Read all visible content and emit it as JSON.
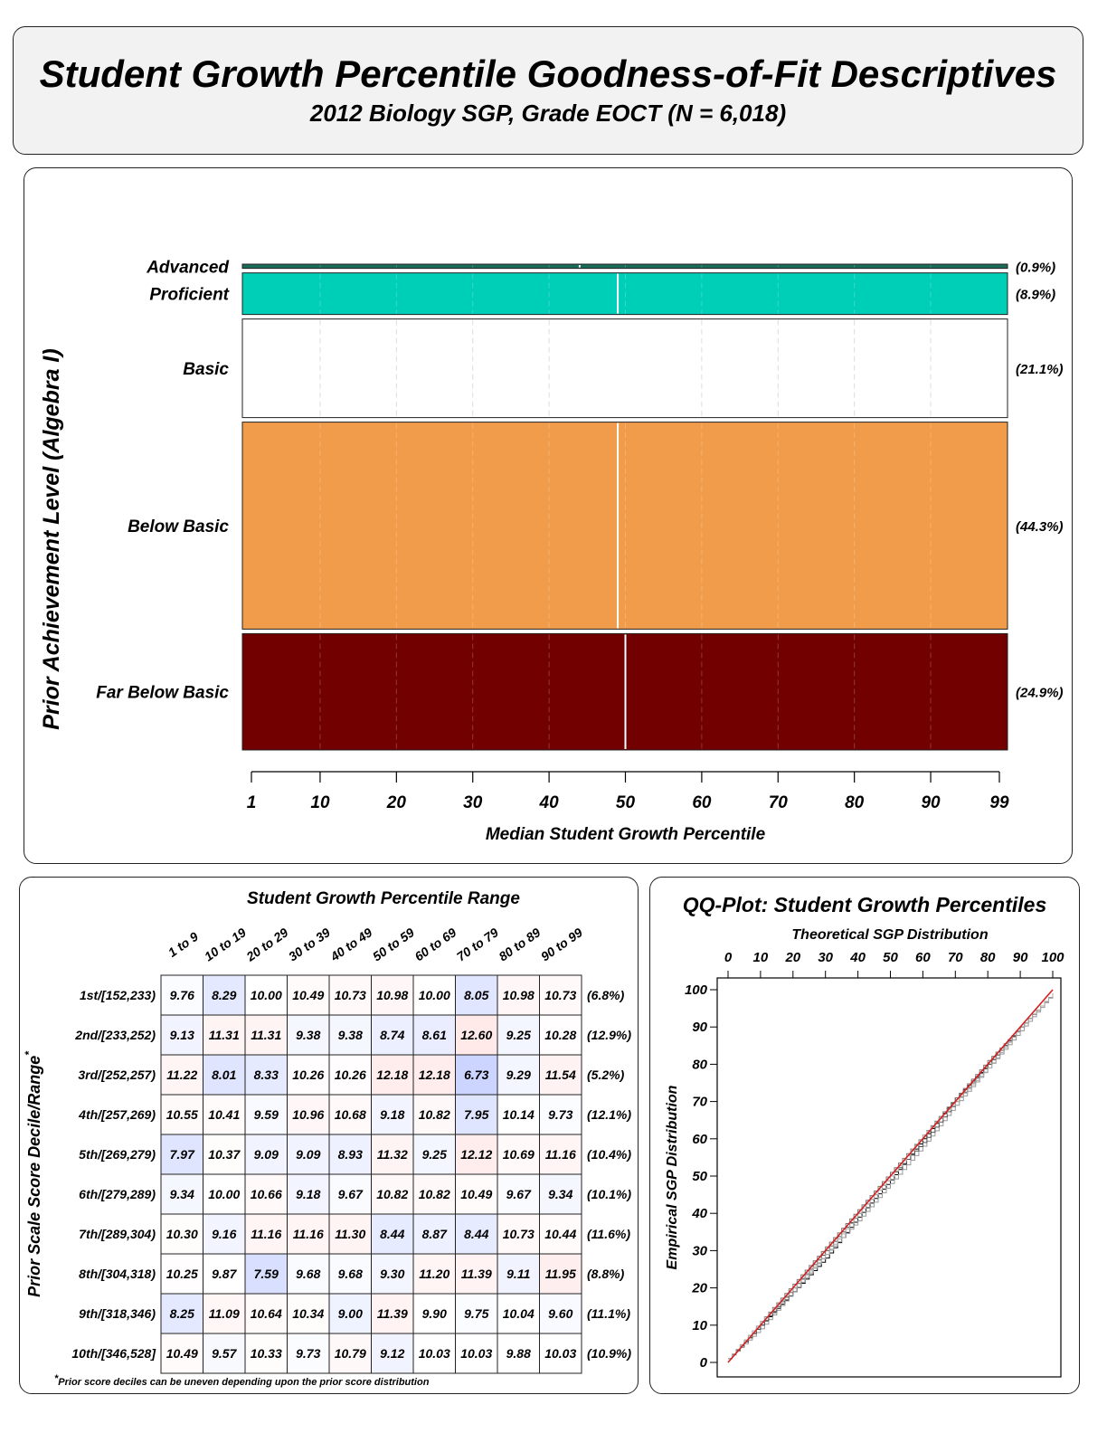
{
  "header": {
    "title": "Student Growth Percentile Goodness-of-Fit Descriptives",
    "subtitle": "2012 Biology SGP, Grade EOCT (N = 6,018)"
  },
  "chart_data": [
    {
      "type": "bar",
      "orientation": "horizontal",
      "ylabel": "Prior Achievement Level (Algebra I)",
      "xlabel": "Median Student Growth Percentile",
      "xlim": [
        1,
        99
      ],
      "xticks": [
        "1",
        "10",
        "20",
        "30",
        "40",
        "50",
        "60",
        "70",
        "80",
        "90",
        "99"
      ],
      "categories": [
        "Advanced",
        "Proficient",
        "Basic",
        "Below Basic",
        "Far Below Basic"
      ],
      "percent_labels": [
        "(0.9%)",
        "(8.9%)",
        "(21.1%)",
        "(44.3%)",
        "(24.9%)"
      ],
      "percent_values": [
        0.9,
        8.9,
        21.1,
        44.3,
        24.9
      ],
      "median_sgp": [
        44,
        49,
        50,
        49,
        50
      ],
      "colors": [
        "#1a6b57",
        "#00cfb7",
        "#ffffff",
        "#f19c4a",
        "#720000"
      ],
      "median_line_colors": [
        "#ffffff",
        "#ffffff",
        "#ffffff",
        "#ffffff",
        "#ffffff"
      ]
    },
    {
      "type": "table",
      "title": "Student Growth Percentile Range",
      "ylabel": "Prior Scale Score Decile/Range",
      "ylabel_mark": "*",
      "columns": [
        "1 to 9",
        "10 to 19",
        "20 to 29",
        "30 to 39",
        "40 to 49",
        "50 to 59",
        "60 to 69",
        "70 to 79",
        "80 to 89",
        "90 to 99"
      ],
      "rows": [
        "1st/[152,233)",
        "2nd/[233,252)",
        "3rd/[252,257)",
        "4th/[257,269)",
        "5th/[269,279)",
        "6th/[279,289)",
        "7th/[289,304)",
        "8th/[304,318)",
        "9th/[318,346)",
        "10th/[346,528]"
      ],
      "values": [
        [
          "9.76",
          "8.29",
          "10.00",
          "10.49",
          "10.73",
          "10.98",
          "10.00",
          "8.05",
          "10.98",
          "10.73"
        ],
        [
          "9.13",
          "11.31",
          "11.31",
          "9.38",
          "9.38",
          "8.74",
          "8.61",
          "12.60",
          "9.25",
          "10.28"
        ],
        [
          "11.22",
          "8.01",
          "8.33",
          "10.26",
          "10.26",
          "12.18",
          "12.18",
          "6.73",
          "9.29",
          "11.54"
        ],
        [
          "10.55",
          "10.41",
          "9.59",
          "10.96",
          "10.68",
          "9.18",
          "10.82",
          "7.95",
          "10.14",
          "9.73"
        ],
        [
          "7.97",
          "10.37",
          "9.09",
          "9.09",
          "8.93",
          "11.32",
          "9.25",
          "12.12",
          "10.69",
          "11.16"
        ],
        [
          "9.34",
          "10.00",
          "10.66",
          "9.18",
          "9.67",
          "10.82",
          "10.82",
          "10.49",
          "9.67",
          "9.34"
        ],
        [
          "10.30",
          "9.16",
          "11.16",
          "11.16",
          "11.30",
          "8.44",
          "8.87",
          "8.44",
          "10.73",
          "10.44"
        ],
        [
          "10.25",
          "9.87",
          "7.59",
          "9.68",
          "9.68",
          "9.30",
          "11.20",
          "11.39",
          "9.11",
          "11.95"
        ],
        [
          "8.25",
          "11.09",
          "10.64",
          "10.34",
          "9.00",
          "11.39",
          "9.90",
          "9.75",
          "10.04",
          "9.60"
        ],
        [
          "10.49",
          "9.57",
          "10.33",
          "9.73",
          "10.79",
          "9.12",
          "10.03",
          "10.03",
          "9.88",
          "10.03"
        ]
      ],
      "row_percents": [
        "(6.8%)",
        "(12.9%)",
        "(5.2%)",
        "(12.1%)",
        "(10.4%)",
        "(10.1%)",
        "(11.6%)",
        "(8.8%)",
        "(11.1%)",
        "(10.9%)"
      ],
      "footnote_mark": "*",
      "footnote": "Prior score deciles can be uneven depending upon the prior score distribution"
    },
    {
      "type": "line",
      "title": "QQ-Plot: Student Growth Percentiles",
      "xlabel": "Theoretical SGP Distribution",
      "ylabel": "Empirical SGP Distribution",
      "xlim": [
        0,
        100
      ],
      "ylim": [
        0,
        100
      ],
      "xticks": [
        "0",
        "10",
        "20",
        "30",
        "40",
        "50",
        "60",
        "70",
        "80",
        "90",
        "100"
      ],
      "yticks": [
        "0",
        "10",
        "20",
        "30",
        "40",
        "50",
        "60",
        "70",
        "80",
        "90",
        "100"
      ],
      "series": [
        {
          "color": "#d62020",
          "x": [
            0,
            100
          ],
          "values": [
            0,
            100
          ]
        },
        {
          "color": "#000000",
          "x": [
            0,
            10,
            20,
            30,
            40,
            50,
            60,
            70,
            80,
            90,
            100
          ],
          "values": [
            1,
            10,
            19,
            28,
            39,
            49,
            60,
            71,
            80,
            90,
            99
          ]
        },
        {
          "color": "#777777",
          "x": [
            0,
            10,
            20,
            30,
            40,
            50,
            60,
            70,
            80,
            90,
            100
          ],
          "values": [
            1,
            11,
            21,
            31,
            41,
            51,
            61,
            71,
            81,
            90,
            99
          ]
        },
        {
          "color": "#999999",
          "x": [
            0,
            10,
            20,
            30,
            40,
            50,
            60,
            70,
            80,
            90,
            100
          ],
          "values": [
            1,
            9,
            19,
            29,
            38,
            48,
            58,
            69,
            79,
            89,
            99
          ]
        },
        {
          "color": "#555555",
          "x": [
            0,
            10,
            20,
            30,
            40,
            50,
            60,
            70,
            80,
            90,
            100
          ],
          "values": [
            1,
            10,
            20,
            30,
            40,
            50,
            59,
            70,
            80,
            90,
            99
          ]
        },
        {
          "color": "#aaaaaa",
          "x": [
            0,
            10,
            20,
            30,
            40,
            50,
            60,
            70,
            80,
            90,
            100
          ],
          "values": [
            1,
            11,
            20,
            29,
            40,
            50,
            61,
            70,
            79,
            90,
            99
          ]
        }
      ]
    }
  ]
}
